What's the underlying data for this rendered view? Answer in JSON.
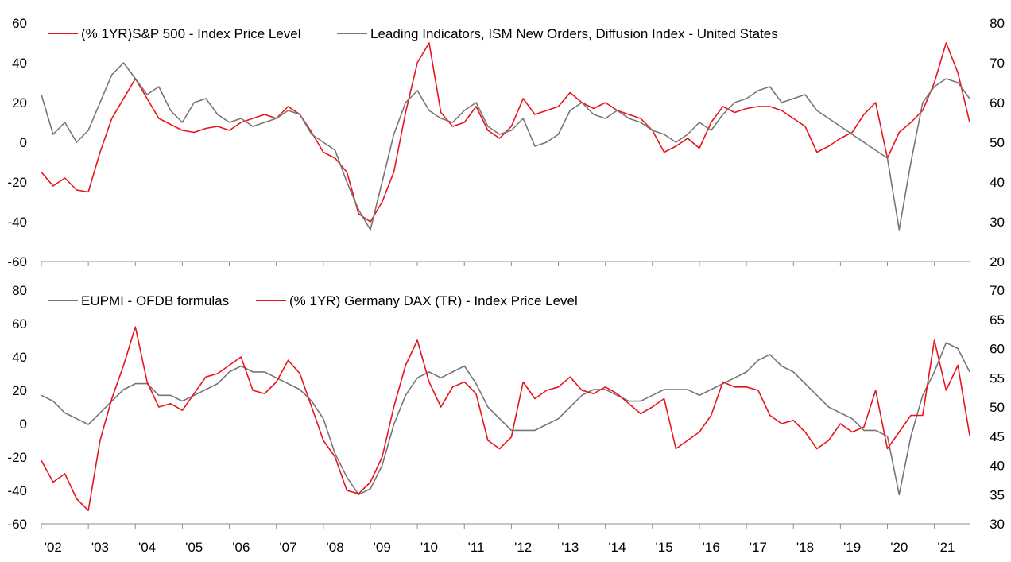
{
  "chart_data": [
    {
      "type": "line",
      "panel": "top",
      "x_range": [
        2002.0,
        2021.75
      ],
      "ylim_left": [
        -60,
        60
      ],
      "ylim_right": [
        20,
        80
      ],
      "yticks_left": [
        -60,
        -40,
        -20,
        0,
        20,
        40,
        60
      ],
      "yticks_right": [
        20,
        30,
        40,
        50,
        60,
        70,
        80
      ],
      "grid": false,
      "legend_position": "top-left",
      "series": [
        {
          "name": "(% 1YR)S&P 500 - Index Price Level",
          "axis": "left",
          "color": "#e8141b",
          "x": [
            2002.0,
            2002.25,
            2002.5,
            2002.75,
            2003.0,
            2003.25,
            2003.5,
            2003.75,
            2004.0,
            2004.25,
            2004.5,
            2004.75,
            2005.0,
            2005.25,
            2005.5,
            2005.75,
            2006.0,
            2006.25,
            2006.5,
            2006.75,
            2007.0,
            2007.25,
            2007.5,
            2007.75,
            2008.0,
            2008.25,
            2008.5,
            2008.75,
            2009.0,
            2009.25,
            2009.5,
            2009.75,
            2010.0,
            2010.25,
            2010.5,
            2010.75,
            2011.0,
            2011.25,
            2011.5,
            2011.75,
            2012.0,
            2012.25,
            2012.5,
            2012.75,
            2013.0,
            2013.25,
            2013.5,
            2013.75,
            2014.0,
            2014.25,
            2014.5,
            2014.75,
            2015.0,
            2015.25,
            2015.5,
            2015.75,
            2016.0,
            2016.25,
            2016.5,
            2016.75,
            2017.0,
            2017.25,
            2017.5,
            2017.75,
            2018.0,
            2018.25,
            2018.5,
            2018.75,
            2019.0,
            2019.25,
            2019.5,
            2019.75,
            2020.0,
            2020.25,
            2020.5,
            2020.75,
            2021.0,
            2021.25,
            2021.5,
            2021.75
          ],
          "values": [
            -15,
            -22,
            -18,
            -24,
            -25,
            -5,
            12,
            22,
            32,
            22,
            12,
            9,
            6,
            5,
            7,
            8,
            6,
            10,
            12,
            14,
            12,
            18,
            14,
            5,
            -5,
            -8,
            -15,
            -36,
            -40,
            -30,
            -15,
            15,
            40,
            50,
            15,
            8,
            10,
            18,
            6,
            2,
            8,
            22,
            14,
            16,
            18,
            25,
            20,
            17,
            20,
            16,
            14,
            12,
            6,
            -5,
            -2,
            2,
            -3,
            10,
            18,
            15,
            17,
            18,
            18,
            16,
            12,
            8,
            -5,
            -2,
            2,
            5,
            14,
            20,
            -8,
            5,
            10,
            16,
            30,
            50,
            35,
            10
          ]
        },
        {
          "name": "Leading Indicators, ISM New Orders, Diffusion Index - United States",
          "axis": "right",
          "color": "#767676",
          "x": [
            2002.0,
            2002.25,
            2002.5,
            2002.75,
            2003.0,
            2003.25,
            2003.5,
            2003.75,
            2004.0,
            2004.25,
            2004.5,
            2004.75,
            2005.0,
            2005.25,
            2005.5,
            2005.75,
            2006.0,
            2006.25,
            2006.5,
            2006.75,
            2007.0,
            2007.25,
            2007.5,
            2007.75,
            2008.0,
            2008.25,
            2008.5,
            2008.75,
            2009.0,
            2009.25,
            2009.5,
            2009.75,
            2010.0,
            2010.25,
            2010.5,
            2010.75,
            2011.0,
            2011.25,
            2011.5,
            2011.75,
            2012.0,
            2012.25,
            2012.5,
            2012.75,
            2013.0,
            2013.25,
            2013.5,
            2013.75,
            2014.0,
            2014.25,
            2014.5,
            2014.75,
            2015.0,
            2015.25,
            2015.5,
            2015.75,
            2016.0,
            2016.25,
            2016.5,
            2016.75,
            2017.0,
            2017.25,
            2017.5,
            2017.75,
            2018.0,
            2018.25,
            2018.5,
            2018.75,
            2019.0,
            2019.25,
            2019.5,
            2019.75,
            2020.0,
            2020.25,
            2020.5,
            2020.75,
            2021.0,
            2021.25,
            2021.5,
            2021.75
          ],
          "values": [
            62,
            52,
            55,
            50,
            53,
            60,
            67,
            70,
            66,
            62,
            64,
            58,
            55,
            60,
            61,
            57,
            55,
            56,
            54,
            55,
            56,
            58,
            57,
            52,
            50,
            48,
            40,
            33,
            28,
            40,
            52,
            60,
            63,
            58,
            56,
            55,
            58,
            60,
            54,
            52,
            53,
            56,
            49,
            50,
            52,
            58,
            60,
            57,
            56,
            58,
            56,
            55,
            53,
            52,
            50,
            52,
            55,
            53,
            57,
            60,
            61,
            63,
            64,
            60,
            61,
            62,
            58,
            56,
            54,
            52,
            50,
            48,
            46,
            28,
            45,
            60,
            64,
            66,
            65,
            61
          ]
        }
      ]
    },
    {
      "type": "line",
      "panel": "bottom",
      "x_range": [
        2002.0,
        2021.75
      ],
      "ylim_left": [
        -60,
        80
      ],
      "ylim_right": [
        30,
        70
      ],
      "yticks_left": [
        -60,
        -40,
        -20,
        0,
        20,
        40,
        60,
        80
      ],
      "yticks_right": [
        30,
        35,
        40,
        45,
        50,
        55,
        60,
        65,
        70
      ],
      "xticks": [
        "'02",
        "'03",
        "'04",
        "'05",
        "'06",
        "'07",
        "'08",
        "'09",
        "'10",
        "'11",
        "'12",
        "'13",
        "'14",
        "'15",
        "'16",
        "'17",
        "'18",
        "'19",
        "'20",
        "'21"
      ],
      "grid": false,
      "legend_position": "top-left",
      "series": [
        {
          "name": "EUPMI - OFDB formulas",
          "axis": "right",
          "color": "#767676",
          "x": [
            2002.0,
            2002.25,
            2002.5,
            2002.75,
            2003.0,
            2003.25,
            2003.5,
            2003.75,
            2004.0,
            2004.25,
            2004.5,
            2004.75,
            2005.0,
            2005.25,
            2005.5,
            2005.75,
            2006.0,
            2006.25,
            2006.5,
            2006.75,
            2007.0,
            2007.25,
            2007.5,
            2007.75,
            2008.0,
            2008.25,
            2008.5,
            2008.75,
            2009.0,
            2009.25,
            2009.5,
            2009.75,
            2010.0,
            2010.25,
            2010.5,
            2010.75,
            2011.0,
            2011.25,
            2011.5,
            2011.75,
            2012.0,
            2012.25,
            2012.5,
            2012.75,
            2013.0,
            2013.25,
            2013.5,
            2013.75,
            2014.0,
            2014.25,
            2014.5,
            2014.75,
            2015.0,
            2015.25,
            2015.5,
            2015.75,
            2016.0,
            2016.25,
            2016.5,
            2016.75,
            2017.0,
            2017.25,
            2017.5,
            2017.75,
            2018.0,
            2018.25,
            2018.5,
            2018.75,
            2019.0,
            2019.25,
            2019.5,
            2019.75,
            2020.0,
            2020.25,
            2020.5,
            2020.75,
            2021.0,
            2021.25,
            2021.5,
            2021.75
          ],
          "values": [
            52,
            51,
            49,
            48,
            47,
            49,
            51,
            53,
            54,
            54,
            52,
            52,
            51,
            52,
            53,
            54,
            56,
            57,
            56,
            56,
            55,
            54,
            53,
            51,
            48,
            42,
            38,
            35,
            36,
            40,
            47,
            52,
            55,
            56,
            55,
            56,
            57,
            54,
            50,
            48,
            46,
            46,
            46,
            47,
            48,
            50,
            52,
            53,
            53,
            52,
            51,
            51,
            52,
            53,
            53,
            53,
            52,
            53,
            54,
            55,
            56,
            58,
            59,
            57,
            56,
            54,
            52,
            50,
            49,
            48,
            46,
            46,
            45,
            35,
            45,
            52,
            56,
            61,
            60,
            56
          ]
        },
        {
          "name": "(% 1YR) Germany DAX (TR) - Index Price Level",
          "axis": "left",
          "color": "#e8141b",
          "x": [
            2002.0,
            2002.25,
            2002.5,
            2002.75,
            2003.0,
            2003.25,
            2003.5,
            2003.75,
            2004.0,
            2004.25,
            2004.5,
            2004.75,
            2005.0,
            2005.25,
            2005.5,
            2005.75,
            2006.0,
            2006.25,
            2006.5,
            2006.75,
            2007.0,
            2007.25,
            2007.5,
            2007.75,
            2008.0,
            2008.25,
            2008.5,
            2008.75,
            2009.0,
            2009.25,
            2009.5,
            2009.75,
            2010.0,
            2010.25,
            2010.5,
            2010.75,
            2011.0,
            2011.25,
            2011.5,
            2011.75,
            2012.0,
            2012.25,
            2012.5,
            2012.75,
            2013.0,
            2013.25,
            2013.5,
            2013.75,
            2014.0,
            2014.25,
            2014.5,
            2014.75,
            2015.0,
            2015.25,
            2015.5,
            2015.75,
            2016.0,
            2016.25,
            2016.5,
            2016.75,
            2017.0,
            2017.25,
            2017.5,
            2017.75,
            2018.0,
            2018.25,
            2018.5,
            2018.75,
            2019.0,
            2019.25,
            2019.5,
            2019.75,
            2020.0,
            2020.25,
            2020.5,
            2020.75,
            2021.0,
            2021.25,
            2021.5,
            2021.75
          ],
          "values": [
            -22,
            -35,
            -30,
            -45,
            -52,
            -10,
            15,
            35,
            58,
            25,
            10,
            12,
            8,
            18,
            28,
            30,
            35,
            40,
            20,
            18,
            25,
            38,
            30,
            10,
            -10,
            -20,
            -40,
            -42,
            -35,
            -20,
            10,
            35,
            50,
            25,
            10,
            22,
            25,
            18,
            -10,
            -15,
            -8,
            25,
            15,
            20,
            22,
            28,
            20,
            18,
            22,
            18,
            12,
            6,
            10,
            15,
            -15,
            -10,
            -5,
            5,
            25,
            22,
            22,
            20,
            5,
            0,
            2,
            -5,
            -15,
            -10,
            0,
            -5,
            -2,
            20,
            -15,
            -5,
            5,
            5,
            50,
            20,
            35,
            -7
          ]
        }
      ]
    }
  ],
  "legends": {
    "top": {
      "s1": "(% 1YR)S&P 500 - Index Price Level",
      "s2": "Leading Indicators, ISM New Orders, Diffusion Index - United States"
    },
    "bottom": {
      "s1": "EUPMI - OFDB formulas",
      "s2": "(% 1YR) Germany DAX (TR) - Index Price Level"
    }
  },
  "colors": {
    "red": "#e8141b",
    "grey": "#767676",
    "axis": "#8c8c8c"
  }
}
